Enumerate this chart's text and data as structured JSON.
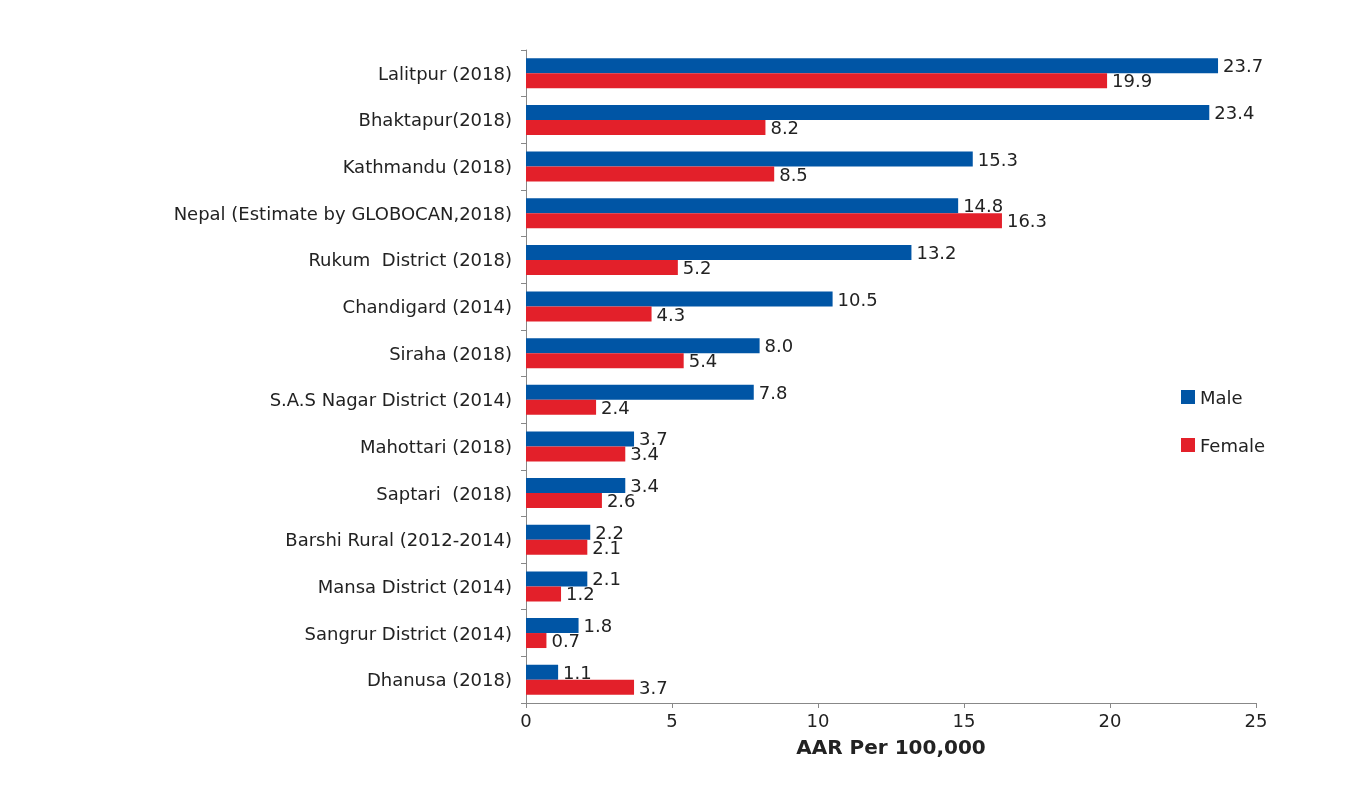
{
  "chart_data": {
    "type": "bar",
    "orientation": "horizontal",
    "xlabel": "AAR Per 100,000",
    "categories": [
      "Lalitpur (2018)",
      "Bhaktapur(2018)",
      "Kathmandu (2018)",
      "Nepal (Estimate by GLOBOCAN,2018)",
      "Rukum  District (2018)",
      "Chandigard (2014)",
      "Siraha (2018)",
      "S.A.S Nagar District (2014)",
      "Mahottari (2018)",
      "Saptari  (2018)",
      "Barshi Rural (2012-2014)",
      "Mansa District (2014)",
      "Sangrur District (2014)",
      "Dhanusa (2018)"
    ],
    "series": [
      {
        "name": "Male",
        "color": "#0055a5",
        "values": [
          23.7,
          23.4,
          15.3,
          14.8,
          13.2,
          10.5,
          8.0,
          7.8,
          3.7,
          3.4,
          2.2,
          2.1,
          1.8,
          1.1
        ],
        "value_labels": [
          "23.7",
          "23.4",
          "15.3",
          "14.8",
          "13.2",
          "10.5",
          "8.0",
          "7.8",
          "3.7",
          "3.4",
          "2.2",
          "2.1",
          "1.8",
          "1.1"
        ]
      },
      {
        "name": "Female",
        "color": "#e3202a",
        "values": [
          19.9,
          8.2,
          8.5,
          16.3,
          5.2,
          4.3,
          5.4,
          2.4,
          3.4,
          2.6,
          2.1,
          1.2,
          0.7,
          3.7
        ],
        "value_labels": [
          "19.9",
          "8.2",
          "8.5",
          "16.3",
          "5.2",
          "4.3",
          "5.4",
          "2.4",
          "3.4",
          "2.6",
          "2.1",
          "1.2",
          "0.7",
          "3.7"
        ]
      }
    ],
    "xlim": [
      0,
      25
    ],
    "xticks": [
      0,
      5,
      10,
      15,
      20,
      25
    ],
    "legend": "right",
    "grid": false
  }
}
